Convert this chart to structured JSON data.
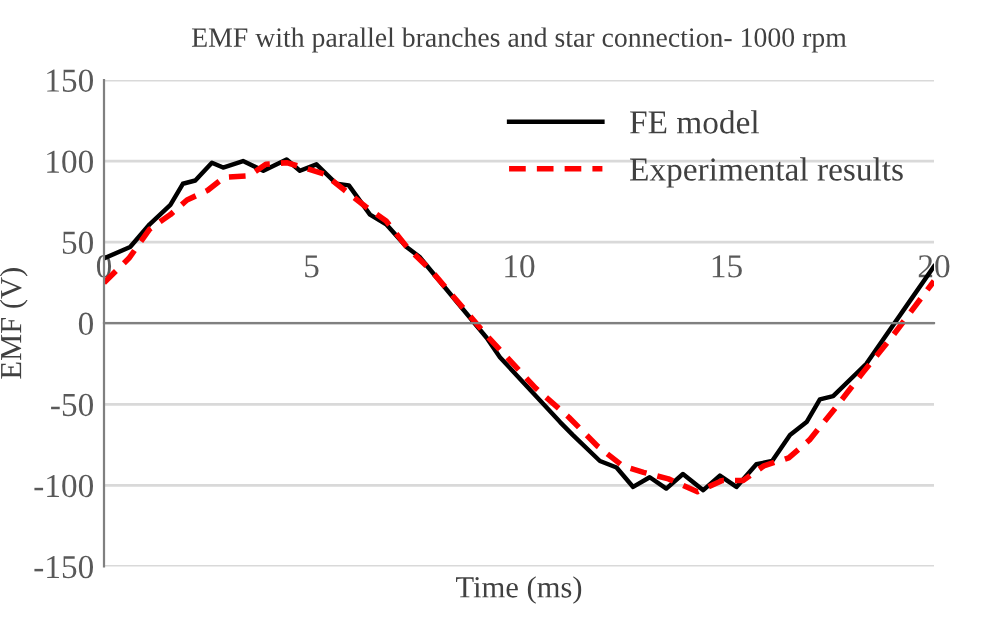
{
  "chart_data": {
    "type": "line",
    "title": "EMF with parallel branches and star connection- 1000 rpm",
    "xlabel": "Time (ms)",
    "ylabel": "EMF (V)",
    "xlim": [
      0,
      20
    ],
    "xticks": [
      0,
      5,
      10,
      15,
      20
    ],
    "ylim": [
      -150,
      150
    ],
    "yticks": [
      -150,
      -100,
      -50,
      0,
      50,
      100,
      150
    ],
    "grid": "y",
    "legend": "top right",
    "series": [
      {
        "name": "FE model",
        "color": "#000000",
        "line_style": "solid",
        "x": [
          0,
          0.63,
          1.1,
          1.6,
          1.9,
          2.2,
          2.6,
          2.87,
          3.35,
          3.84,
          4.4,
          4.72,
          5.12,
          5.6,
          5.9,
          6.41,
          6.8,
          7.29,
          7.6,
          9.22,
          9.54,
          10.34,
          10.99,
          11.3,
          11.95,
          12.35,
          12.75,
          13.15,
          13.55,
          13.95,
          14.44,
          14.84,
          15.24,
          15.72,
          16.1,
          16.53,
          16.93,
          17.25,
          17.57,
          18.37,
          19.4,
          20
        ],
        "values": [
          40,
          47,
          61,
          73,
          86,
          88,
          99,
          96,
          100,
          94,
          101,
          94,
          98,
          86,
          85,
          67,
          61,
          47,
          41,
          -9,
          -21,
          -43,
          -61,
          -69,
          -85,
          -89,
          -101,
          -95,
          -102,
          -93,
          -103,
          -94,
          -101,
          -87,
          -85,
          -69,
          -61,
          -47,
          -45,
          -25,
          13,
          35
        ]
      },
      {
        "name": "Experimental results",
        "color": "#ff0000",
        "line_style": "dashed",
        "x": [
          0,
          0.6,
          1.1,
          1.6,
          2.0,
          2.5,
          2.9,
          3.5,
          3.9,
          4.4,
          4.8,
          5.3,
          5.8,
          6.3,
          6.8,
          7.3,
          7.9,
          9.2,
          10.4,
          11.2,
          11.9,
          12.5,
          13.0,
          13.6,
          14.3,
          14.9,
          15.4,
          15.9,
          16.5,
          17.0,
          17.6,
          18.3,
          19.0,
          20
        ],
        "values": [
          25,
          40,
          58,
          67,
          76,
          82,
          90,
          91,
          98,
          99,
          96,
          92,
          82,
          72,
          63,
          47,
          32,
          -7,
          -40,
          -58,
          -76,
          -88,
          -92,
          -96,
          -104,
          -97,
          -97,
          -88,
          -83,
          -72,
          -53,
          -30,
          -8,
          26
        ]
      }
    ]
  }
}
